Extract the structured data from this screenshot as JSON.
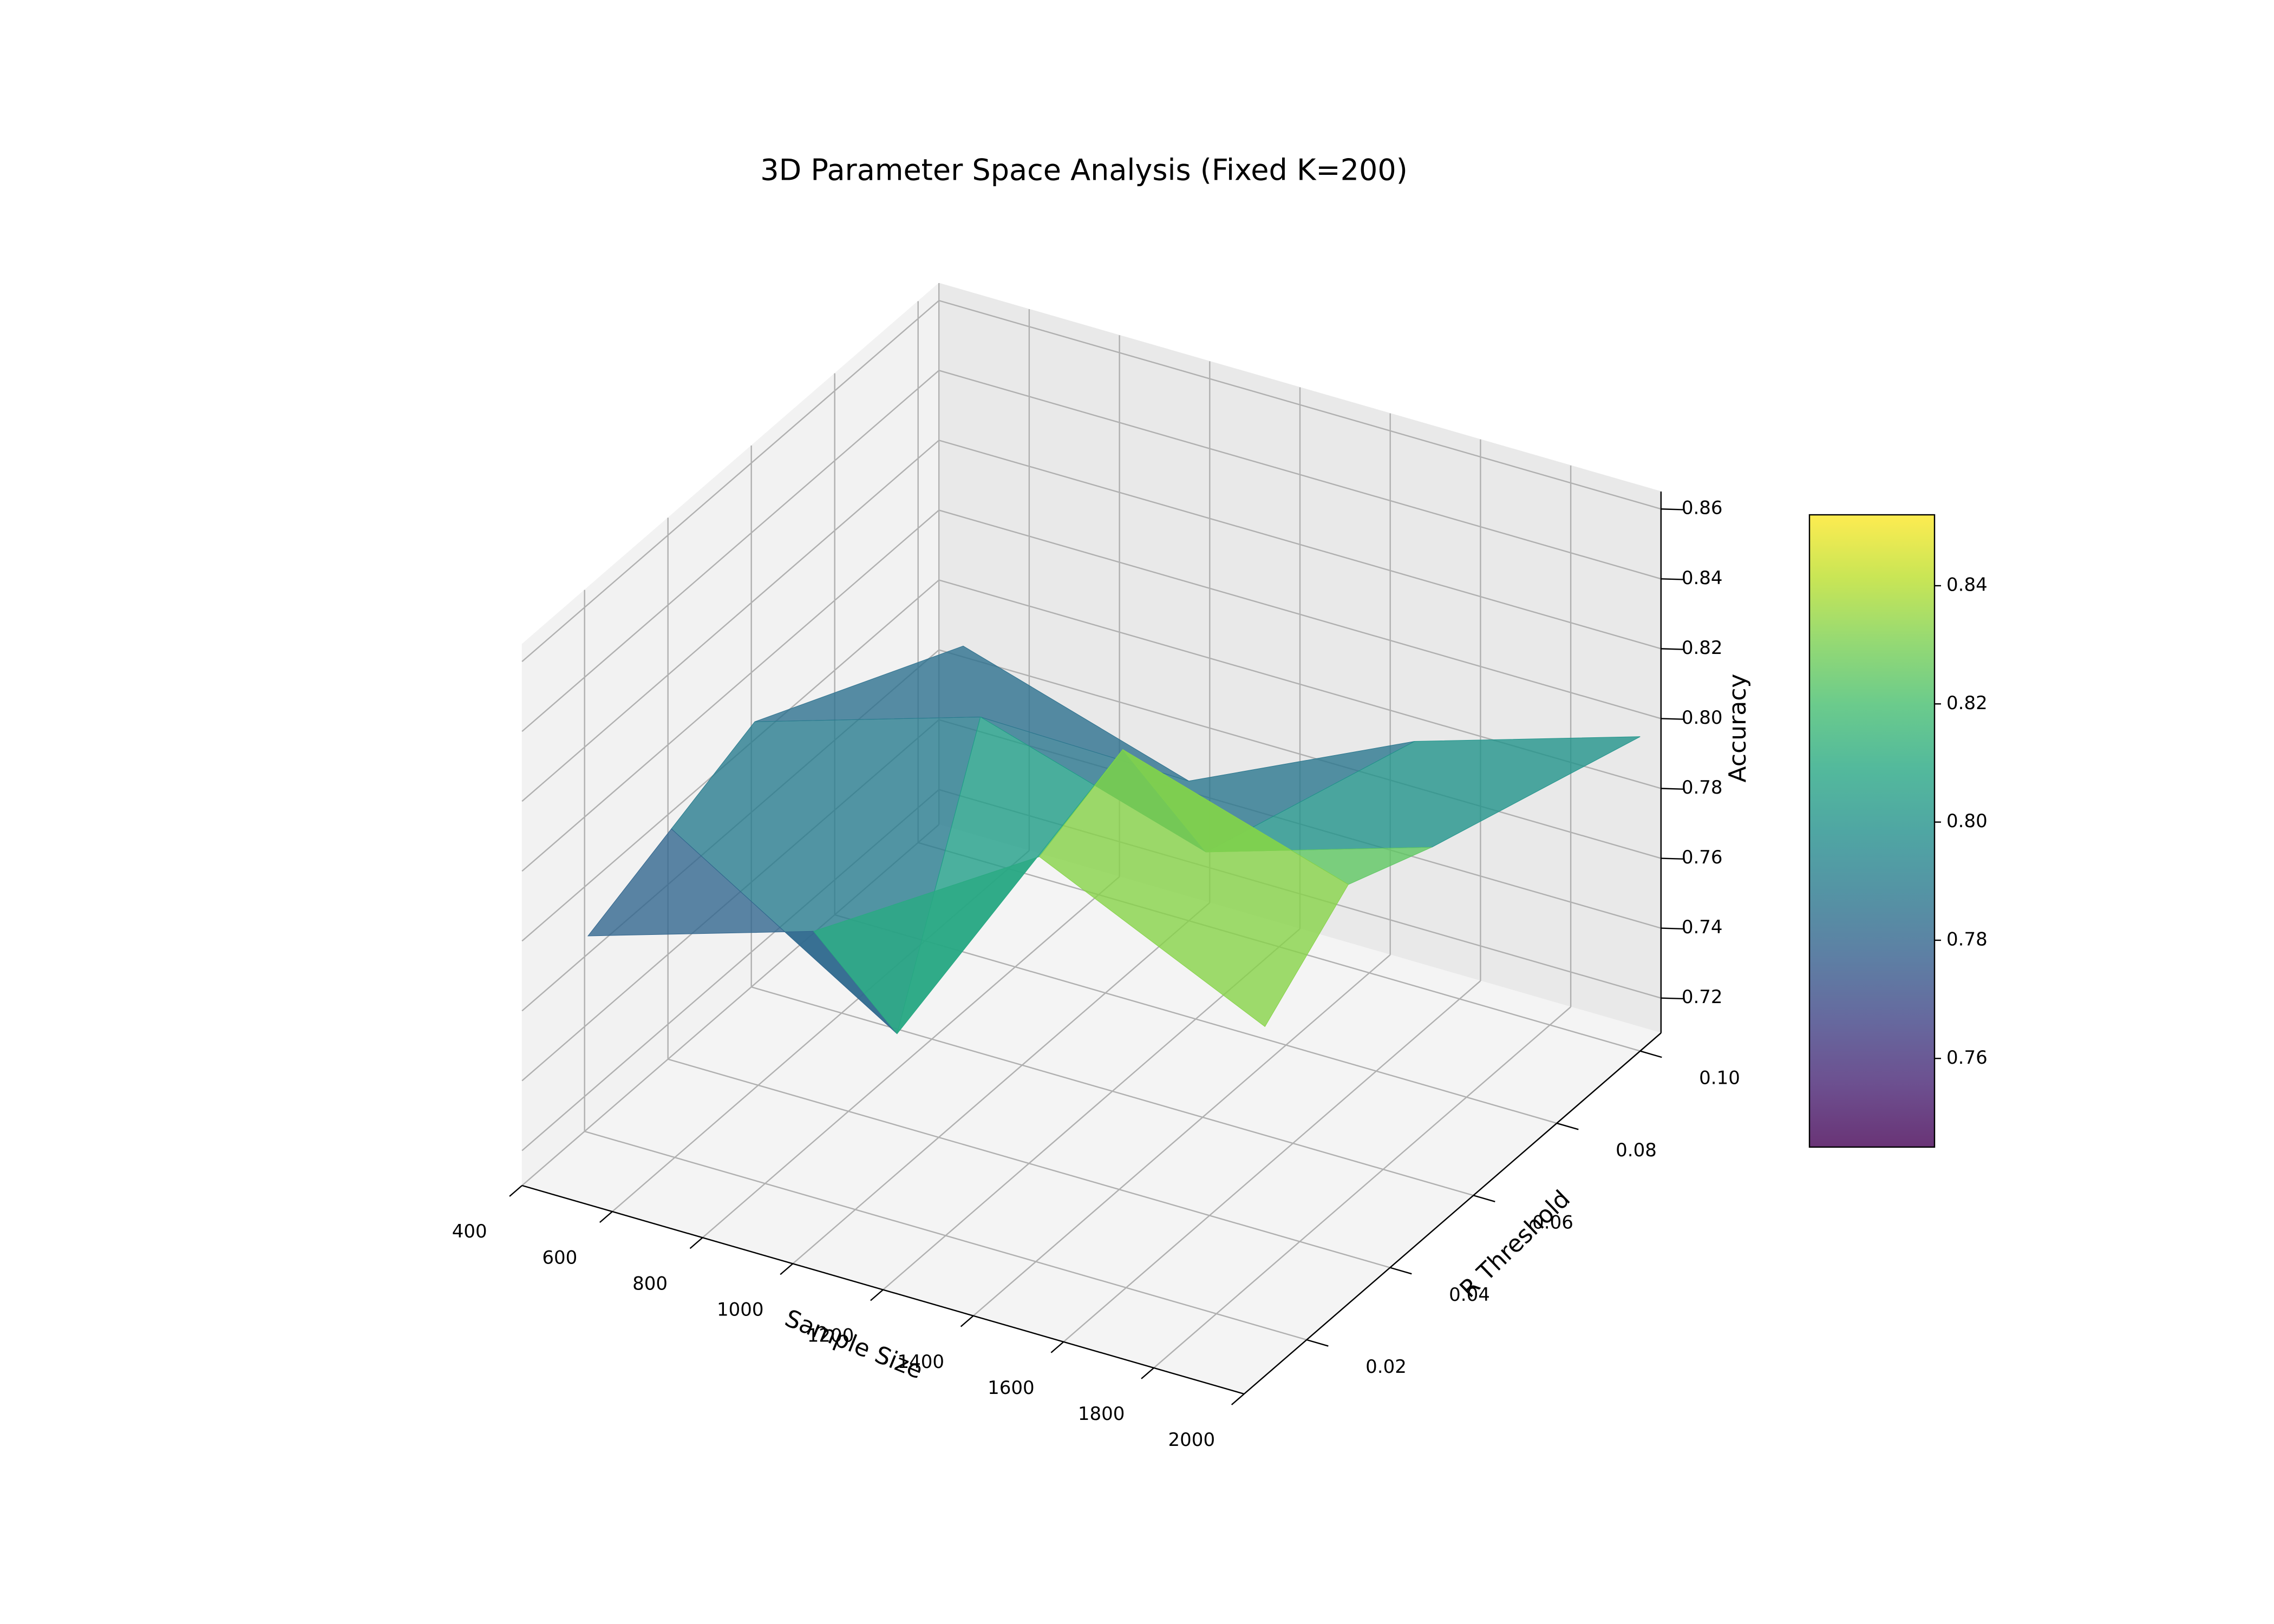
{
  "chart_data": {
    "type": "surface3d",
    "title": "3D Parameter Space Analysis (Fixed K=200)",
    "x_label": "Sample Size",
    "y_label": "R Threshold",
    "z_label": "Accuracy",
    "x": [
      500,
      1000,
      1500,
      2000
    ],
    "y": [
      0.01,
      0.03,
      0.05,
      0.1
    ],
    "z": [
      [
        0.78,
        0.8,
        0.84,
        0.81
      ],
      [
        0.79,
        0.75,
        0.85,
        0.83
      ],
      [
        0.8,
        0.82,
        0.8,
        0.82
      ],
      [
        0.77,
        0.75,
        0.78,
        0.8
      ]
    ],
    "xlim": [
      400,
      2000
    ],
    "xticks": [
      400,
      600,
      800,
      1000,
      1200,
      1400,
      1600,
      1800,
      2000
    ],
    "ylim": [
      0.005,
      0.105
    ],
    "yticks": [
      0.02,
      0.04,
      0.06,
      0.08,
      {
        "value": 0.1,
        "label": "0.10"
      }
    ],
    "zlim": [
      0.71,
      0.865
    ],
    "zticks": [
      0.72,
      0.74,
      0.76,
      0.78,
      {
        "value": 0.8,
        "label": "0.80"
      },
      0.82,
      0.84,
      0.86
    ],
    "colormap": "viridis",
    "alpha": 0.8,
    "clim": [
      0.745,
      0.852
    ],
    "cticks": [
      0.76,
      0.78,
      {
        "value": 0.8,
        "label": "0.80"
      },
      0.82,
      0.84
    ],
    "grid": true
  }
}
